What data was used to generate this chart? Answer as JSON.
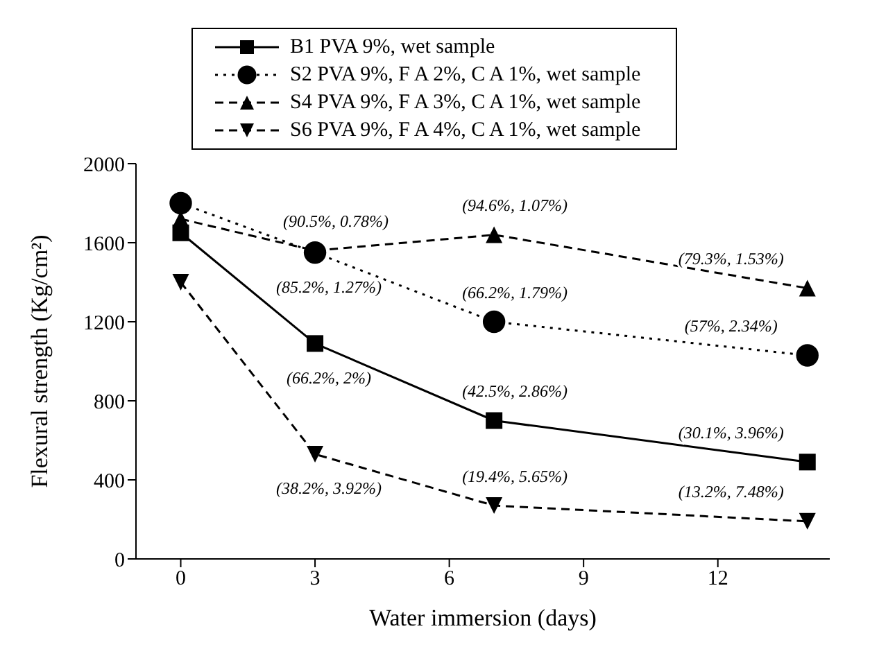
{
  "chart_data": {
    "type": "line",
    "xlabel": "Water immersion (days)",
    "ylabel": "Flexural strength (Kg/cm²)",
    "xlim": [
      -1,
      14.5
    ],
    "xticks": [
      0,
      3,
      6,
      9,
      12
    ],
    "ylim": [
      0,
      2000
    ],
    "yticks": [
      0,
      400,
      800,
      1200,
      1600,
      2000
    ],
    "x": [
      0,
      3,
      7,
      14
    ],
    "grid": false,
    "legend": "top",
    "series": [
      {
        "name": "B1  PVA 9%, wet sample",
        "color": "#000000",
        "values": [
          1650,
          1090,
          700,
          490
        ],
        "marker": "square",
        "line_style": "solid"
      },
      {
        "name": "S2  PVA 9%, F A 2%, C A 1%, wet sample",
        "color": "#000000",
        "values": [
          1800,
          1550,
          1200,
          1030
        ],
        "marker": "circle",
        "line_style": "dotted"
      },
      {
        "name": "S4  PVA 9%, F A 3%, C A 1%, wet sample",
        "color": "#000000",
        "values": [
          1720,
          1560,
          1640,
          1370
        ],
        "marker": "triangle",
        "line_style": "dashed"
      },
      {
        "name": "S6  PVA 9%, F A 4%, C A 1%, wet sample",
        "color": "#000000",
        "values": [
          1400,
          530,
          270,
          190
        ],
        "marker": "triangle-down",
        "line_style": "dashed"
      }
    ],
    "annotations": [
      {
        "text": "(90.5%, 0.78%)",
        "x": 3,
        "y": 1560
      },
      {
        "text": "(94.6%, 1.07%)",
        "x": 7,
        "y": 1640
      },
      {
        "text": "(79.3%, 1.53%)",
        "x": 14,
        "y": 1370
      },
      {
        "text": "(85.2%, 1.27%)",
        "x": 3,
        "y": 1550
      },
      {
        "text": "(66.2%, 1.79%)",
        "x": 7,
        "y": 1200
      },
      {
        "text": "(57%, 2.34%)",
        "x": 14,
        "y": 1030
      },
      {
        "text": "(66.2%, 2%)",
        "x": 3,
        "y": 1090
      },
      {
        "text": "(42.5%, 2.86%)",
        "x": 7,
        "y": 700
      },
      {
        "text": "(30.1%, 3.96%)",
        "x": 14,
        "y": 490
      },
      {
        "text": "(38.2%, 3.92%)",
        "x": 3,
        "y": 530
      },
      {
        "text": "(19.4%, 5.65%)",
        "x": 7,
        "y": 270
      },
      {
        "text": "(13.2%, 7.48%)",
        "x": 14,
        "y": 190
      }
    ]
  }
}
